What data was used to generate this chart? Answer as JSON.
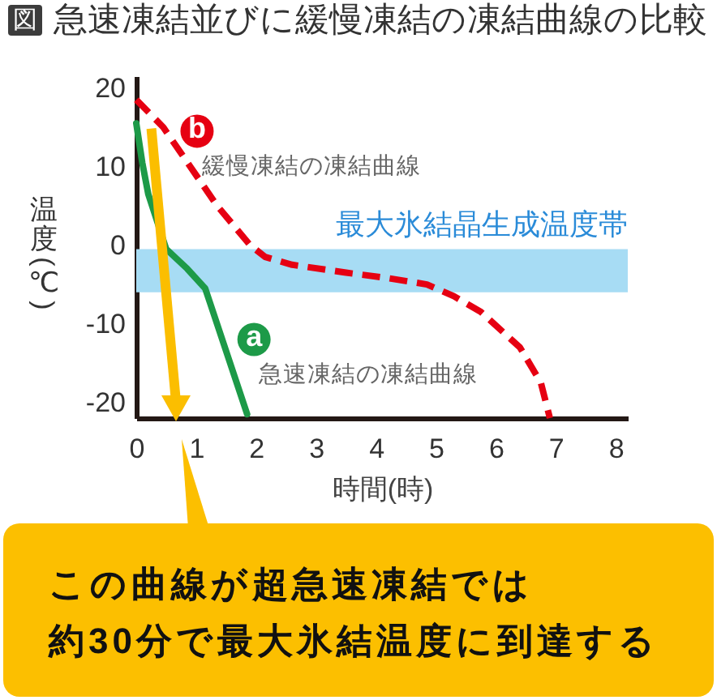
{
  "chart_data": {
    "type": "line",
    "title": "図 急速凍結並びに緩慢凍結の凍結曲線の比較",
    "xlabel": "時間(時)",
    "ylabel": "温度(℃)",
    "xlim": [
      0,
      8.2
    ],
    "ylim": [
      -22,
      21.5
    ],
    "xticks": [
      0,
      1,
      2,
      3,
      4,
      5,
      6,
      7,
      8
    ],
    "yticks": [
      -20,
      -10,
      0,
      10,
      20
    ],
    "legend": "left",
    "series": [
      {
        "name": "緩慢凍結の凍結曲線",
        "color": "#e60012",
        "line_style": "dashed",
        "x": [
          0,
          0.45,
          1.35,
          1.9,
          2.15,
          2.6,
          3.5,
          4.2,
          4.85,
          5.3,
          5.75,
          6.4,
          6.75,
          6.9
        ],
        "values": [
          18.5,
          15,
          5,
          0,
          -1.5,
          -2.5,
          -3.5,
          -4.2,
          -5,
          -6.5,
          -8.5,
          -13,
          -17.5,
          -22
        ]
      },
      {
        "name": "急速凍結の凍結曲線",
        "color": "#1d9a48",
        "x": [
          0,
          0.1,
          0.2,
          0.35,
          0.5,
          0.85,
          1.15,
          1.85
        ],
        "values": [
          15.5,
          10.5,
          6.5,
          3,
          -0.5,
          -3,
          -5.5,
          -21.5
        ]
      }
    ],
    "bands": [
      {
        "axis": "y",
        "from": -6,
        "to": -0.5,
        "label": "最大氷結晶生成温度帯",
        "color": "#a7dcf4"
      }
    ],
    "annotations": [
      {
        "text": "b",
        "x": 0.5,
        "y": 14.5
      },
      {
        "text": "a",
        "x": 1.45,
        "y": -12
      },
      "この曲線が超急速凍結では約30分で最大氷結温度に到達する"
    ]
  }
}
